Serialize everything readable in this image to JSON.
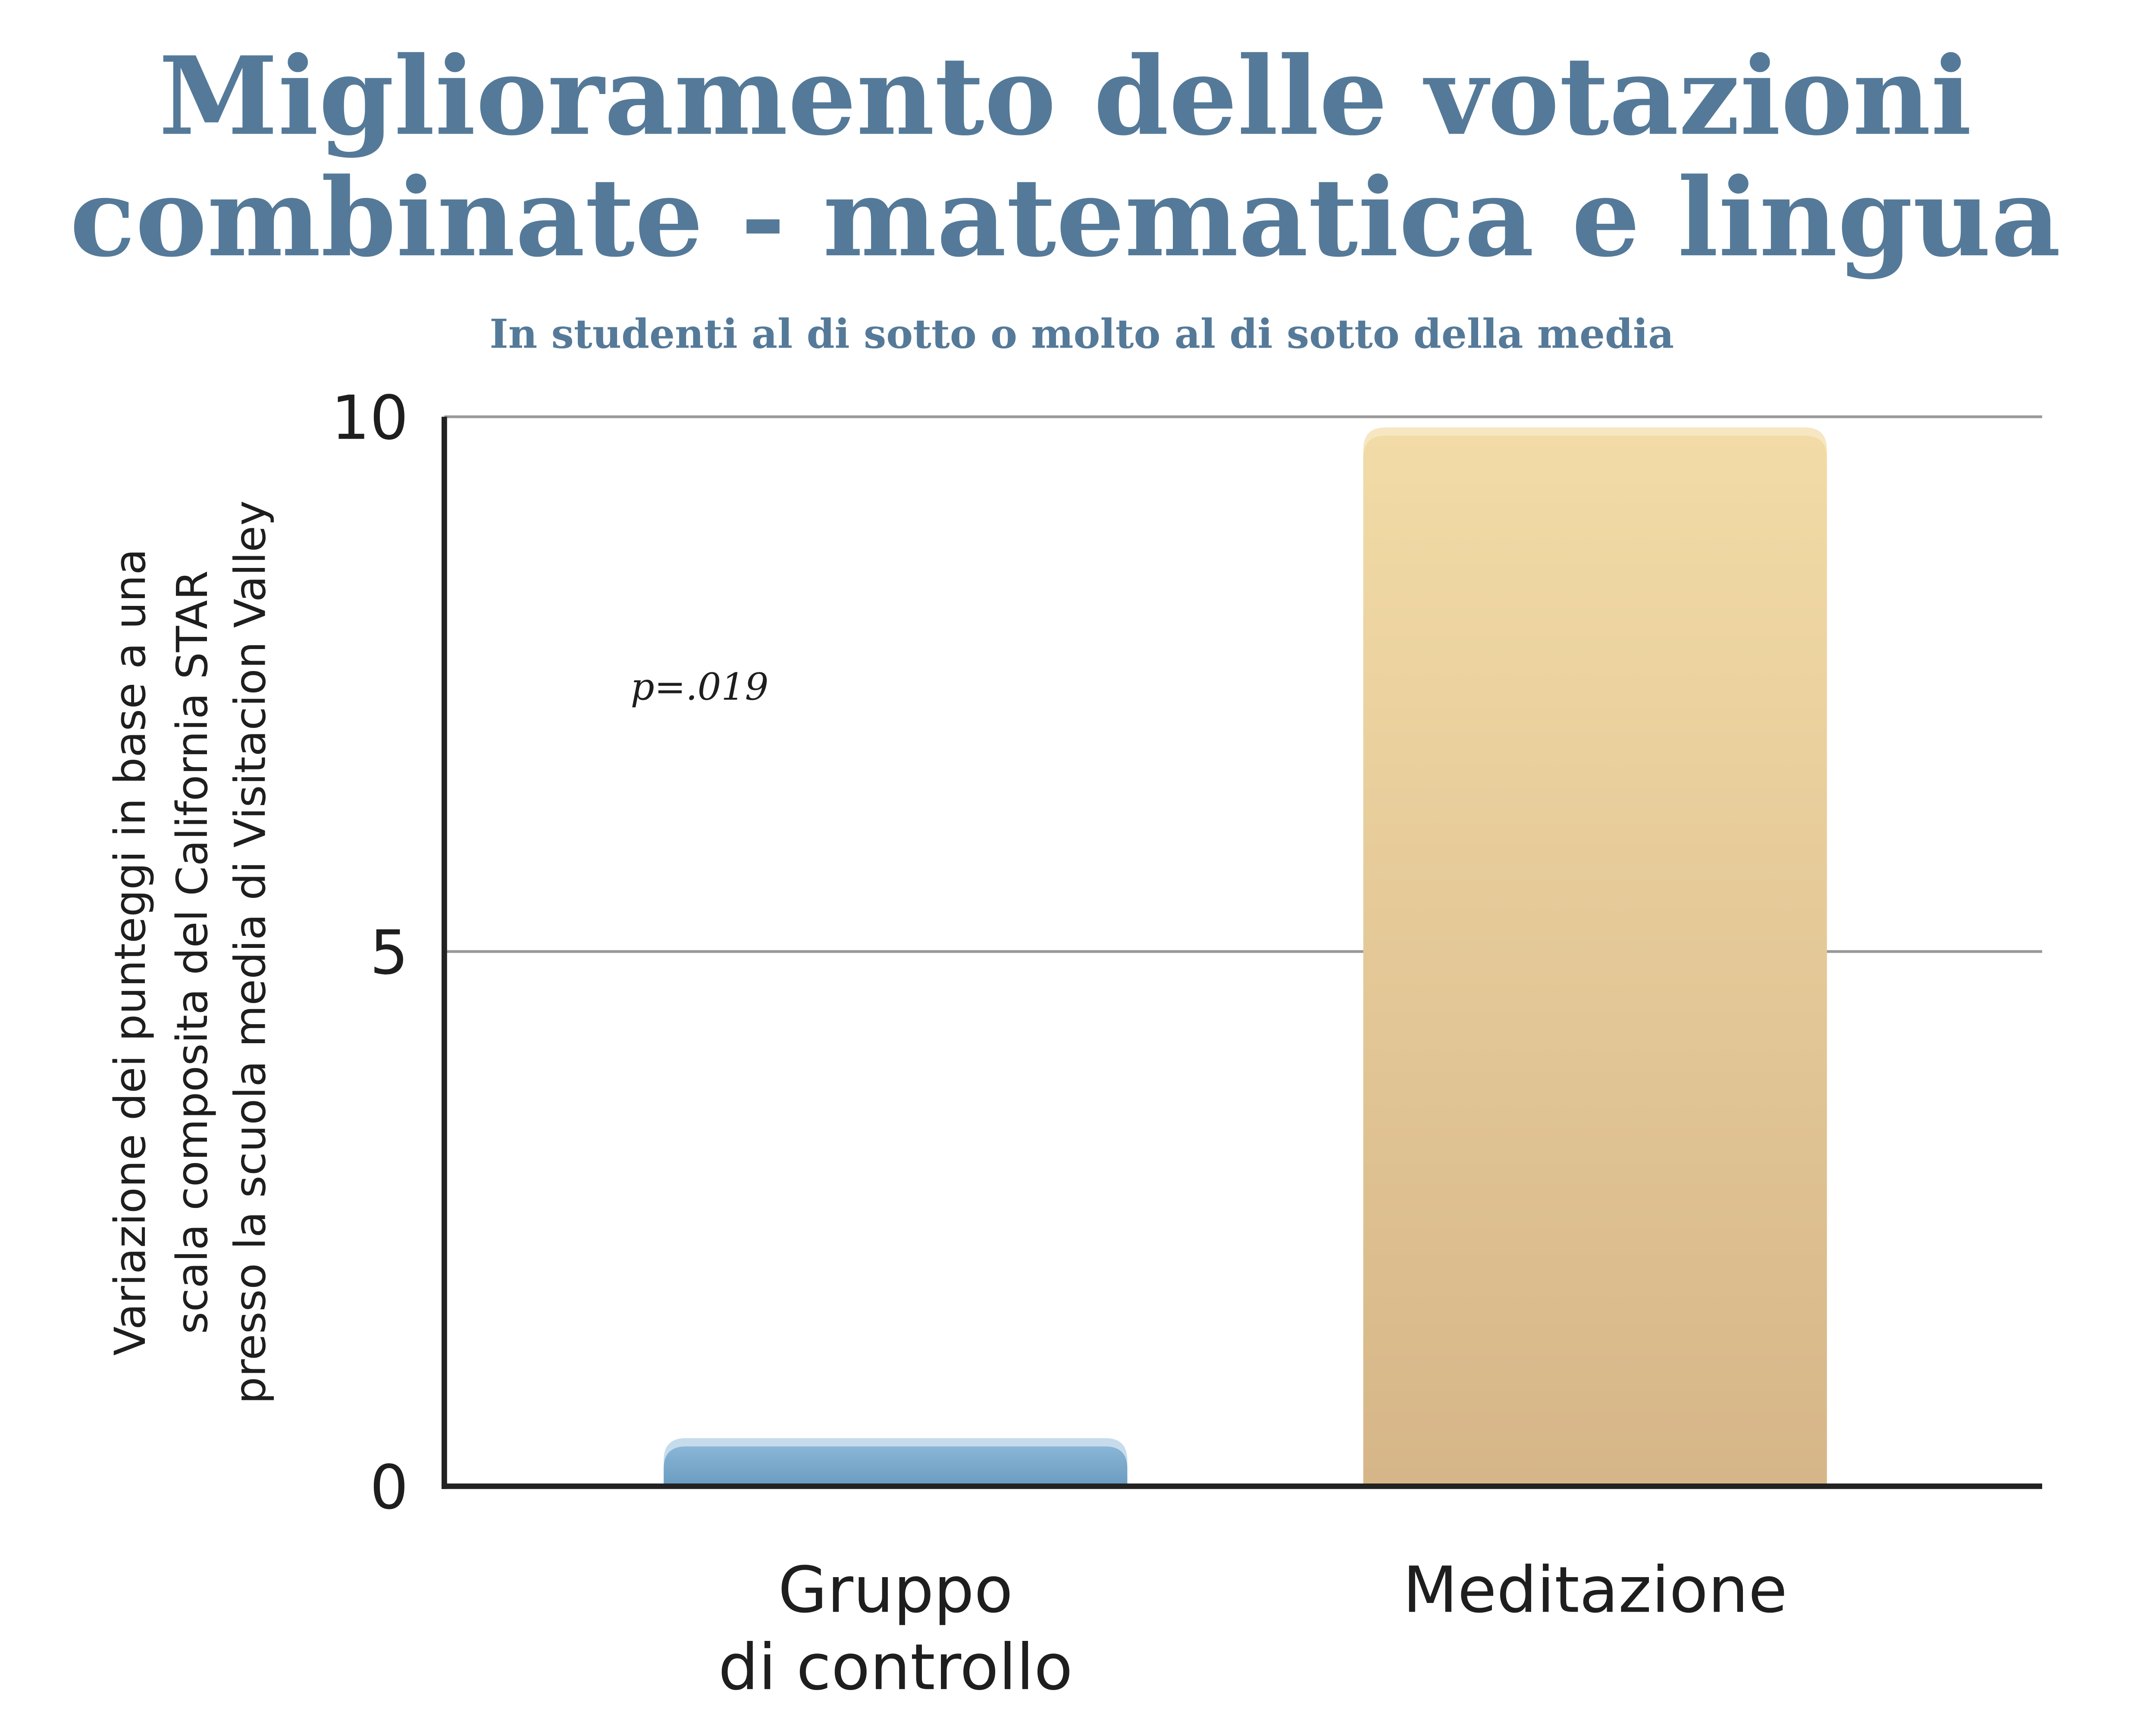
{
  "chart_data": {
    "type": "bar",
    "title_lines": [
      "Miglioramento delle votazioni",
      "combinate - matematica e lingua"
    ],
    "subtitle": "In studenti al di sotto o molto al di sotto della media",
    "ylabel_lines": [
      "Variazione dei punteggi in base a una",
      "scala composita del California STAR",
      "presso la scuola media di Visitacion Valley"
    ],
    "categories": [
      {
        "lines": [
          "Gruppo",
          "di controllo"
        ]
      },
      {
        "lines": [
          "Meditazione"
        ]
      }
    ],
    "values": [
      0.45,
      9.9
    ],
    "ylim": [
      0,
      10
    ],
    "yticks": [
      "0",
      "5",
      "10"
    ],
    "grid": true,
    "annotation": "p=.019",
    "colors": {
      "title": "#557a99",
      "bar_control_top": "#8ab6d6",
      "bar_control_bottom": "#6a9bc0",
      "bar_meditation_top": "#f2dba6",
      "bar_meditation_bottom": "#d6b688",
      "grid": "#999999",
      "axis": "#222222"
    }
  }
}
